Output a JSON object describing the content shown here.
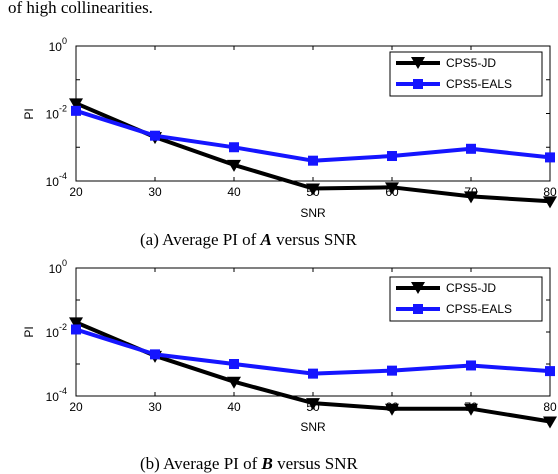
{
  "header_fragment": "of high collinearities.",
  "chart_data": [
    {
      "type": "line",
      "caption_prefix": "(a)   Average PI of ",
      "caption_var": "A",
      "caption_suffix": "  versus SNR",
      "xlabel": "SNR",
      "ylabel": "PI",
      "x": [
        20,
        30,
        40,
        50,
        60,
        70,
        80
      ],
      "xlim": [
        20,
        80
      ],
      "xticks": [
        "20",
        "30",
        "40",
        "50",
        "60",
        "70",
        "80"
      ],
      "yscale": "log",
      "ylim_exp": [
        -4,
        0
      ],
      "yticks": [
        {
          "base": "10",
          "exp": "0"
        },
        {
          "base": "10",
          "exp": "-2"
        },
        {
          "base": "10",
          "exp": "-4"
        }
      ],
      "legend_position": "top-right",
      "series": [
        {
          "name": "CPS5-JD",
          "color": "#000000",
          "marker": "triangle-down",
          "values": [
            0.02,
            0.002,
            0.0003,
            6e-05,
            6.5e-05,
            3.5e-05,
            2.5e-05
          ]
        },
        {
          "name": "CPS5-EALS",
          "color": "#1515ff",
          "marker": "square",
          "values": [
            0.012,
            0.0022,
            0.001,
            0.0004,
            0.00055,
            0.0009,
            0.0005
          ]
        }
      ]
    },
    {
      "type": "line",
      "caption_prefix": "(b)   Average PI of ",
      "caption_var": "B",
      "caption_suffix": "  versus SNR",
      "xlabel": "SNR",
      "ylabel": "PI",
      "x": [
        20,
        30,
        40,
        50,
        60,
        70,
        80
      ],
      "xlim": [
        20,
        80
      ],
      "xticks": [
        "20",
        "30",
        "40",
        "50",
        "60",
        "70",
        "80"
      ],
      "yscale": "log",
      "ylim_exp": [
        -4,
        0
      ],
      "yticks": [
        {
          "base": "10",
          "exp": "0"
        },
        {
          "base": "10",
          "exp": "-2"
        },
        {
          "base": "10",
          "exp": "-4"
        }
      ],
      "legend_position": "top-right",
      "series": [
        {
          "name": "CPS5-JD",
          "color": "#000000",
          "marker": "triangle-down",
          "values": [
            0.02,
            0.0018,
            0.00028,
            6e-05,
            4e-05,
            4e-05,
            1.6e-05
          ]
        },
        {
          "name": "CPS5-EALS",
          "color": "#1515ff",
          "marker": "square",
          "values": [
            0.012,
            0.002,
            0.001,
            0.0005,
            0.00062,
            0.0009,
            0.0006
          ]
        }
      ]
    }
  ]
}
